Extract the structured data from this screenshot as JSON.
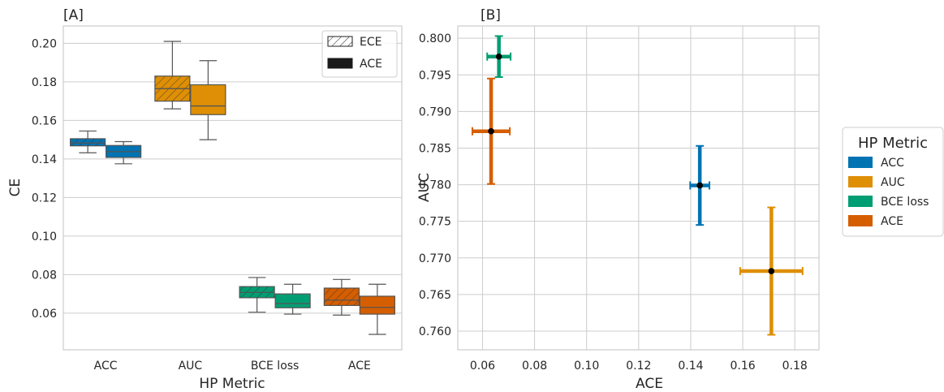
{
  "colors": {
    "ACC": "#0173b2",
    "AUC": "#de8f05",
    "BCE loss": "#029e73",
    "ACE": "#d55e00"
  },
  "chart_data": [
    {
      "type": "box",
      "title": "[A]",
      "xlabel": "HP Metric",
      "ylabel": "CE",
      "ylim": [
        0.041,
        0.209
      ],
      "yticks": [
        "0.06",
        "0.08",
        "0.10",
        "0.12",
        "0.14",
        "0.16",
        "0.18",
        "0.20"
      ],
      "categories": [
        "ACC",
        "AUC",
        "BCE loss",
        "ACE"
      ],
      "hue_legend": [
        {
          "label": "ECE",
          "hatch": true
        },
        {
          "label": "ACE",
          "hatch": false
        }
      ],
      "boxes": [
        {
          "category": "ACC",
          "hue": "ECE",
          "whislo": 0.1432,
          "q1": 0.1468,
          "med": 0.1483,
          "q3": 0.1505,
          "whishi": 0.1545
        },
        {
          "category": "ACC",
          "hue": "ACE",
          "whislo": 0.1375,
          "q1": 0.1408,
          "med": 0.1438,
          "q3": 0.147,
          "whishi": 0.149
        },
        {
          "category": "AUC",
          "hue": "ECE",
          "whislo": 0.166,
          "q1": 0.17,
          "med": 0.1765,
          "q3": 0.183,
          "whishi": 0.201
        },
        {
          "category": "AUC",
          "hue": "ACE",
          "whislo": 0.15,
          "q1": 0.163,
          "med": 0.1675,
          "q3": 0.1785,
          "whishi": 0.191
        },
        {
          "category": "BCE loss",
          "hue": "ECE",
          "whislo": 0.0605,
          "q1": 0.068,
          "med": 0.0708,
          "q3": 0.0738,
          "whishi": 0.0785
        },
        {
          "category": "BCE loss",
          "hue": "ACE",
          "whislo": 0.0595,
          "q1": 0.0628,
          "med": 0.065,
          "q3": 0.07,
          "whishi": 0.075
        },
        {
          "category": "ACE",
          "hue": "ECE",
          "whislo": 0.059,
          "q1": 0.064,
          "med": 0.0668,
          "q3": 0.073,
          "whishi": 0.0775
        },
        {
          "category": "ACE",
          "hue": "ACE",
          "whislo": 0.049,
          "q1": 0.0595,
          "med": 0.063,
          "q3": 0.0688,
          "whishi": 0.075
        }
      ]
    },
    {
      "type": "errorbar",
      "title": "[B]",
      "xlabel": "ACE",
      "ylabel": "AUC",
      "xlim": [
        0.0505,
        0.1893
      ],
      "ylim": [
        0.75745,
        0.80168
      ],
      "xticks": [
        "0.06",
        "0.08",
        "0.10",
        "0.12",
        "0.14",
        "0.16",
        "0.18"
      ],
      "yticks": [
        "0.760",
        "0.765",
        "0.770",
        "0.775",
        "0.780",
        "0.785",
        "0.790",
        "0.795",
        "0.800"
      ],
      "legend": {
        "title": "HP Metric",
        "entries": [
          "ACC",
          "AUC",
          "BCE loss",
          "ACE"
        ],
        "placement": "outside-right"
      },
      "points": [
        {
          "name": "ACC",
          "x": 0.1435,
          "y": 0.7799,
          "xerr": 0.0037,
          "yerr": 0.0054
        },
        {
          "name": "AUC",
          "x": 0.171,
          "y": 0.7682,
          "xerr": 0.012,
          "yerr": 0.0087
        },
        {
          "name": "BCE loss",
          "x": 0.0663,
          "y": 0.7975,
          "xerr": 0.0045,
          "yerr": 0.0028
        },
        {
          "name": "ACE",
          "x": 0.0633,
          "y": 0.7873,
          "xerr": 0.0072,
          "yerr": 0.0072
        }
      ]
    }
  ]
}
